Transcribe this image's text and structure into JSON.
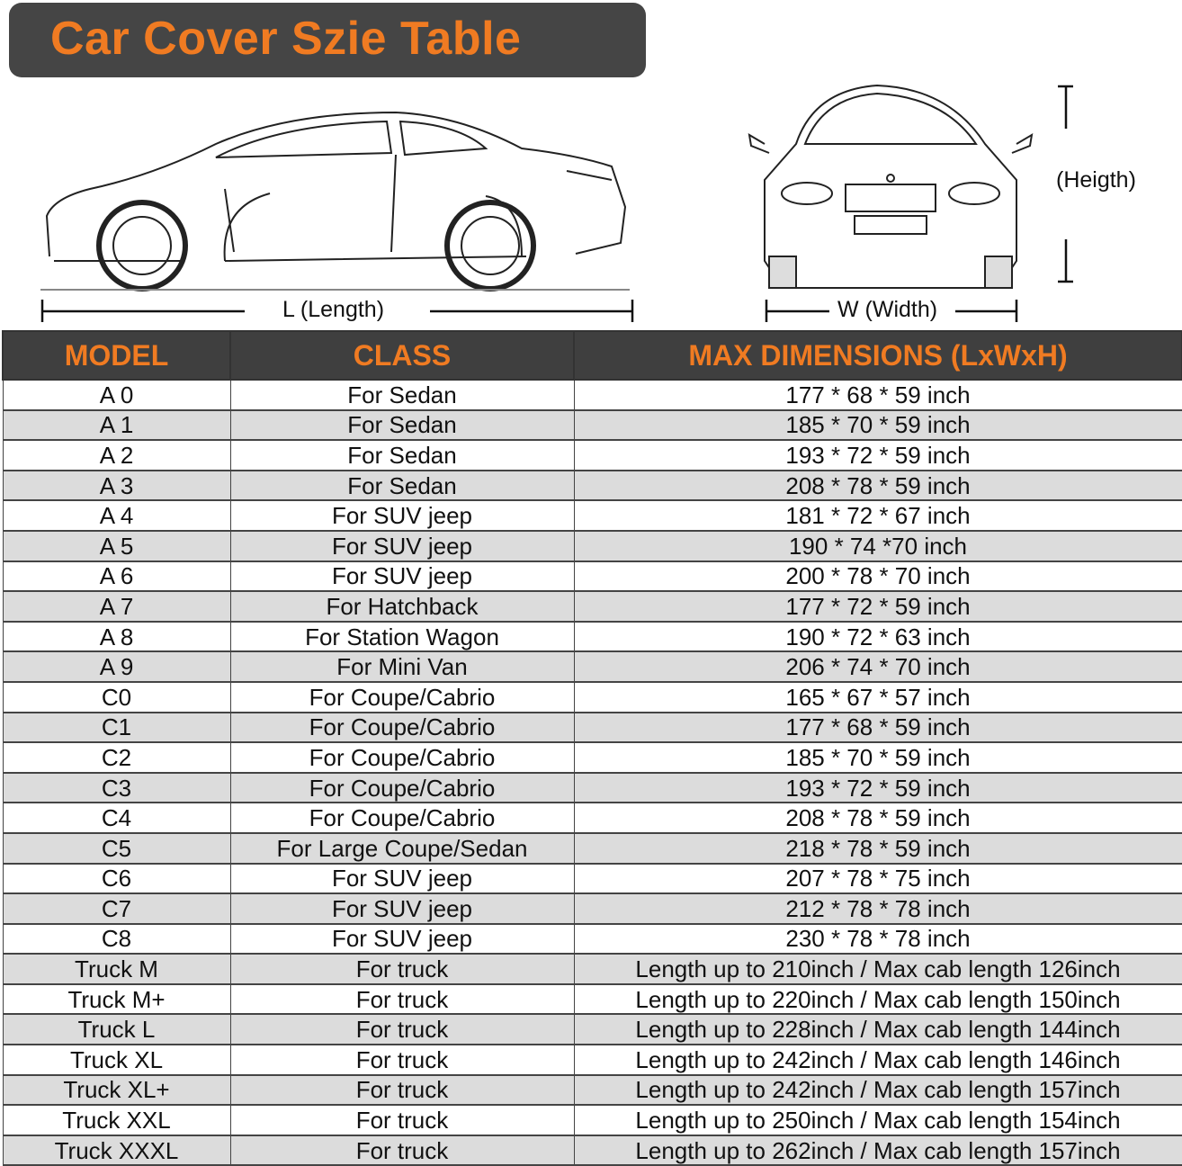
{
  "title": "Car Cover Szie Table",
  "dimensions": {
    "length_label": "L (Length)",
    "width_label": "W (Width)",
    "height_label": "(Heigth)"
  },
  "colors": {
    "accent": "#f07b22",
    "header_bg": "#3f3f3f",
    "alt_row": "#dcdcdc"
  },
  "table": {
    "headers": [
      "MODEL",
      "CLASS",
      "MAX DIMENSIONS (LxWxH)"
    ],
    "rows": [
      [
        "A 0",
        "For Sedan",
        "177 * 68 * 59 inch"
      ],
      [
        "A 1",
        "For Sedan",
        "185 * 70 * 59 inch"
      ],
      [
        "A 2",
        "For Sedan",
        "193 * 72 * 59 inch"
      ],
      [
        "A 3",
        "For Sedan",
        "208 * 78 * 59 inch"
      ],
      [
        "A 4",
        "For SUV jeep",
        "181 * 72 * 67 inch"
      ],
      [
        "A 5",
        "For SUV jeep",
        "190 * 74  *70 inch"
      ],
      [
        "A 6",
        "For SUV jeep",
        "200 * 78 * 70 inch"
      ],
      [
        "A 7",
        "For Hatchback",
        "177 * 72 * 59 inch"
      ],
      [
        "A 8",
        "For Station Wagon",
        "190 * 72 * 63 inch"
      ],
      [
        "A 9",
        "For Mini Van",
        "206 * 74 * 70 inch"
      ],
      [
        "C0",
        "For Coupe/Cabrio",
        "165 * 67 * 57 inch"
      ],
      [
        "C1",
        "For Coupe/Cabrio",
        "177 * 68 * 59 inch"
      ],
      [
        "C2",
        "For Coupe/Cabrio",
        "185 * 70 * 59 inch"
      ],
      [
        "C3",
        "For Coupe/Cabrio",
        "193 * 72 * 59 inch"
      ],
      [
        "C4",
        "For Coupe/Cabrio",
        "208 * 78 * 59 inch"
      ],
      [
        "C5",
        "For Large Coupe/Sedan",
        "218 * 78 * 59 inch"
      ],
      [
        "C6",
        "For SUV jeep",
        "207 * 78 * 75 inch"
      ],
      [
        "C7",
        "For SUV jeep",
        "212 * 78 * 78 inch"
      ],
      [
        "C8",
        "For SUV jeep",
        "230 * 78 * 78 inch"
      ],
      [
        "Truck M",
        "For truck",
        "Length up to 210inch / Max cab length 126inch"
      ],
      [
        "Truck M+",
        "For truck",
        "Length up to 220inch / Max cab length 150inch"
      ],
      [
        "Truck L",
        "For truck",
        "Length up to 228inch / Max cab length 144inch"
      ],
      [
        "Truck XL",
        "For truck",
        "Length up to 242inch / Max cab length 146inch"
      ],
      [
        "Truck XL+",
        "For truck",
        "Length up to 242inch / Max cab length 157inch"
      ],
      [
        "Truck XXL",
        "For truck",
        "Length up to 250inch / Max cab length 154inch"
      ],
      [
        "Truck XXXL",
        "For truck",
        "Length up to 262inch / Max cab length 157inch"
      ]
    ]
  }
}
